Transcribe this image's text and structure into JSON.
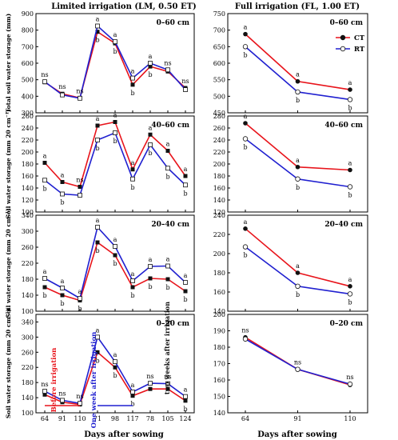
{
  "colors": {
    "ct": "#e8141b",
    "rt": "#2020d0",
    "axis": "#000000",
    "grid": "#cccccc"
  },
  "figure": {
    "left_title": "Limited irrigation (LM, 0.50 ET)",
    "right_title": "Full irrigation (FL, 1.00 ET)",
    "xlabel": "Days after sowing",
    "legend": {
      "ct": "CT",
      "rt": "RT",
      "placement": "top-right of upper-right panel"
    }
  },
  "chart_data": [
    {
      "type": "line",
      "id": "left-0-60",
      "depth": "0–60 cm",
      "ylabel": "Total soil water storage (mm)",
      "ylim": [
        300,
        900
      ],
      "yticks": [
        300,
        400,
        500,
        600,
        700,
        800,
        900
      ],
      "x_categories": [
        "64",
        "91",
        "110",
        "71",
        "98",
        "117",
        "78",
        "105",
        "124"
      ],
      "series": [
        {
          "key": "ct",
          "values": [
            485,
            415,
            390,
            790,
            720,
            470,
            580,
            550,
            450
          ]
        },
        {
          "key": "rt",
          "values": [
            488,
            408,
            388,
            825,
            730,
            510,
            600,
            560,
            440
          ]
        }
      ],
      "annotations": [
        {
          "i": 0,
          "text": "ns",
          "pos": "above"
        },
        {
          "i": 1,
          "text": "ns",
          "pos": "above"
        },
        {
          "i": 2,
          "text": "ns",
          "pos": "above"
        },
        {
          "i": 3,
          "text": "a",
          "pos": "above"
        },
        {
          "i": 3,
          "text": "b",
          "pos": "below"
        },
        {
          "i": 4,
          "text": "a",
          "pos": "above"
        },
        {
          "i": 4,
          "text": "b",
          "pos": "below"
        },
        {
          "i": 5,
          "text": "a",
          "pos": "above"
        },
        {
          "i": 5,
          "text": "b",
          "pos": "below"
        },
        {
          "i": 6,
          "text": "a",
          "pos": "above"
        },
        {
          "i": 6,
          "text": "b",
          "pos": "below"
        },
        {
          "i": 7,
          "text": "ns",
          "pos": "above"
        },
        {
          "i": 8,
          "text": "ns",
          "pos": "above"
        }
      ]
    },
    {
      "type": "line",
      "id": "left-40-60",
      "depth": "40–60 cm",
      "ylabel": "Soil water storage (mm 20 cm⁻¹)",
      "ylim": [
        100,
        260
      ],
      "yticks": [
        100,
        120,
        140,
        160,
        180,
        200,
        220,
        240,
        260
      ],
      "x_categories": [
        "64",
        "91",
        "110",
        "71",
        "98",
        "117",
        "78",
        "105",
        "124"
      ],
      "series": [
        {
          "key": "ct",
          "values": [
            182,
            150,
            142,
            244,
            250,
            171,
            229,
            202,
            160
          ]
        },
        {
          "key": "rt",
          "values": [
            153,
            130,
            128,
            220,
            232,
            155,
            212,
            173,
            145
          ]
        }
      ],
      "annotations": [
        {
          "i": 0,
          "text": "a",
          "pos": "above"
        },
        {
          "i": 0,
          "text": "b",
          "pos": "below"
        },
        {
          "i": 1,
          "text": "a",
          "pos": "above"
        },
        {
          "i": 1,
          "text": "b",
          "pos": "below"
        },
        {
          "i": 2,
          "text": "ns",
          "pos": "above"
        },
        {
          "i": 3,
          "text": "a",
          "pos": "above"
        },
        {
          "i": 3,
          "text": "b",
          "pos": "below"
        },
        {
          "i": 4,
          "text": "a",
          "pos": "above"
        },
        {
          "i": 4,
          "text": "b",
          "pos": "below"
        },
        {
          "i": 5,
          "text": "a",
          "pos": "above"
        },
        {
          "i": 5,
          "text": "b",
          "pos": "below"
        },
        {
          "i": 6,
          "text": "a",
          "pos": "above"
        },
        {
          "i": 6,
          "text": "b",
          "pos": "below"
        },
        {
          "i": 7,
          "text": "a",
          "pos": "above"
        },
        {
          "i": 7,
          "text": "b",
          "pos": "below"
        },
        {
          "i": 8,
          "text": "a",
          "pos": "above"
        },
        {
          "i": 8,
          "text": "b",
          "pos": "below"
        }
      ]
    },
    {
      "type": "line",
      "id": "left-20-40",
      "depth": "20–40 cm",
      "ylabel": "Soil water storage (mm 20 cm⁻¹)",
      "ylim": [
        100,
        340
      ],
      "yticks": [
        100,
        140,
        180,
        220,
        260,
        300,
        340
      ],
      "x_categories": [
        "64",
        "91",
        "110",
        "71",
        "98",
        "117",
        "78",
        "105",
        "124"
      ],
      "series": [
        {
          "key": "ct",
          "values": [
            160,
            140,
            127,
            272,
            240,
            160,
            182,
            180,
            150
          ]
        },
        {
          "key": "rt",
          "values": [
            182,
            158,
            132,
            310,
            262,
            176,
            212,
            213,
            172
          ]
        }
      ],
      "annotations": [
        {
          "i": 0,
          "text": "a",
          "pos": "above"
        },
        {
          "i": 0,
          "text": "b",
          "pos": "below"
        },
        {
          "i": 1,
          "text": "a",
          "pos": "above"
        },
        {
          "i": 1,
          "text": "b",
          "pos": "below"
        },
        {
          "i": 2,
          "text": "a",
          "pos": "above"
        },
        {
          "i": 2,
          "text": "b",
          "pos": "below"
        },
        {
          "i": 3,
          "text": "a",
          "pos": "above"
        },
        {
          "i": 3,
          "text": "b",
          "pos": "below"
        },
        {
          "i": 4,
          "text": "a",
          "pos": "above"
        },
        {
          "i": 4,
          "text": "b",
          "pos": "below"
        },
        {
          "i": 5,
          "text": "a",
          "pos": "above"
        },
        {
          "i": 5,
          "text": "b",
          "pos": "below"
        },
        {
          "i": 6,
          "text": "a",
          "pos": "above"
        },
        {
          "i": 6,
          "text": "b",
          "pos": "below"
        },
        {
          "i": 7,
          "text": "a",
          "pos": "above"
        },
        {
          "i": 7,
          "text": "b",
          "pos": "below"
        },
        {
          "i": 8,
          "text": "a",
          "pos": "above"
        },
        {
          "i": 8,
          "text": "b",
          "pos": "below"
        }
      ]
    },
    {
      "type": "line",
      "id": "left-0-20",
      "depth": "0–20 cm",
      "ylabel": "Soil water storage (mm 20 cm⁻¹)",
      "ylim": [
        100,
        360
      ],
      "yticks": [
        100,
        140,
        180,
        220,
        260,
        300,
        340
      ],
      "x_categories": [
        "64",
        "91",
        "110",
        "71",
        "98",
        "117",
        "78",
        "105",
        "124"
      ],
      "series": [
        {
          "key": "ct",
          "values": [
            148,
            128,
            122,
            260,
            220,
            145,
            163,
            163,
            132
          ]
        },
        {
          "key": "rt",
          "values": [
            157,
            133,
            125,
            300,
            235,
            155,
            178,
            177,
            143
          ]
        }
      ],
      "annotations": [
        {
          "i": 0,
          "text": "ns",
          "pos": "above"
        },
        {
          "i": 1,
          "text": "ns",
          "pos": "above"
        },
        {
          "i": 2,
          "text": "ns",
          "pos": "above"
        },
        {
          "i": 3,
          "text": "a",
          "pos": "above"
        },
        {
          "i": 3,
          "text": "b",
          "pos": "below"
        },
        {
          "i": 4,
          "text": "a",
          "pos": "above"
        },
        {
          "i": 4,
          "text": "b",
          "pos": "below"
        },
        {
          "i": 5,
          "text": "a",
          "pos": "above"
        },
        {
          "i": 5,
          "text": "b",
          "pos": "below"
        },
        {
          "i": 6,
          "text": "ns",
          "pos": "above"
        },
        {
          "i": 7,
          "text": "ns",
          "pos": "above"
        },
        {
          "i": 8,
          "text": "a",
          "pos": "above"
        },
        {
          "i": 8,
          "text": "b",
          "pos": "below"
        }
      ],
      "phase_labels": [
        "Before irrigation",
        "One week after irrigation",
        "two weeks after irrigation"
      ]
    },
    {
      "type": "line",
      "id": "right-0-60",
      "depth": "0–60 cm",
      "ylabel": "",
      "ylim": [
        450,
        750
      ],
      "yticks": [
        450,
        500,
        550,
        600,
        650,
        700,
        750
      ],
      "x_categories": [
        "64",
        "91",
        "110"
      ],
      "series": [
        {
          "key": "ct",
          "values": [
            688,
            545,
            520
          ]
        },
        {
          "key": "rt",
          "values": [
            650,
            513,
            490
          ]
        }
      ],
      "annotations": [
        {
          "i": 0,
          "text": "a",
          "pos": "above"
        },
        {
          "i": 0,
          "text": "b",
          "pos": "below"
        },
        {
          "i": 1,
          "text": "a",
          "pos": "above"
        },
        {
          "i": 1,
          "text": "b",
          "pos": "below"
        },
        {
          "i": 2,
          "text": "a",
          "pos": "above"
        },
        {
          "i": 2,
          "text": "b",
          "pos": "below"
        }
      ]
    },
    {
      "type": "line",
      "id": "right-40-60",
      "depth": "40–60 cm",
      "ylabel": "",
      "ylim": [
        120,
        280
      ],
      "yticks": [
        120,
        140,
        160,
        180,
        200,
        220,
        240,
        260,
        280
      ],
      "x_categories": [
        "64",
        "91",
        "110"
      ],
      "series": [
        {
          "key": "ct",
          "values": [
            268,
            195,
            190
          ]
        },
        {
          "key": "rt",
          "values": [
            242,
            175,
            162
          ]
        }
      ],
      "annotations": [
        {
          "i": 0,
          "text": "a",
          "pos": "above"
        },
        {
          "i": 0,
          "text": "b",
          "pos": "below"
        },
        {
          "i": 1,
          "text": "a",
          "pos": "above"
        },
        {
          "i": 1,
          "text": "b",
          "pos": "below"
        },
        {
          "i": 2,
          "text": "a",
          "pos": "above"
        },
        {
          "i": 2,
          "text": "b",
          "pos": "below"
        }
      ]
    },
    {
      "type": "line",
      "id": "right-20-40",
      "depth": "20–40 cm",
      "ylabel": "",
      "ylim": [
        140,
        240
      ],
      "yticks": [
        140,
        160,
        180,
        200,
        220,
        240
      ],
      "x_categories": [
        "64",
        "91",
        "110"
      ],
      "series": [
        {
          "key": "ct",
          "values": [
            226,
            180,
            166
          ]
        },
        {
          "key": "rt",
          "values": [
            207,
            166,
            158
          ]
        }
      ],
      "annotations": [
        {
          "i": 0,
          "text": "a",
          "pos": "above"
        },
        {
          "i": 0,
          "text": "b",
          "pos": "below"
        },
        {
          "i": 1,
          "text": "a",
          "pos": "above"
        },
        {
          "i": 1,
          "text": "b",
          "pos": "below"
        },
        {
          "i": 2,
          "text": "a",
          "pos": "above"
        },
        {
          "i": 2,
          "text": "b",
          "pos": "below"
        }
      ]
    },
    {
      "type": "line",
      "id": "right-0-20",
      "depth": "0–20 cm",
      "ylabel": "",
      "ylim": [
        140,
        200
      ],
      "yticks": [
        140,
        150,
        160,
        170,
        180,
        190,
        200
      ],
      "x_categories": [
        "64",
        "91",
        "110"
      ],
      "series": [
        {
          "key": "ct",
          "values": [
            186,
            166.5,
            157
          ]
        },
        {
          "key": "rt",
          "values": [
            185,
            166.5,
            157.5
          ]
        }
      ],
      "annotations": [
        {
          "i": 0,
          "text": "ns",
          "pos": "above"
        },
        {
          "i": 1,
          "text": "ns",
          "pos": "above"
        },
        {
          "i": 2,
          "text": "ns",
          "pos": "above"
        }
      ]
    }
  ]
}
